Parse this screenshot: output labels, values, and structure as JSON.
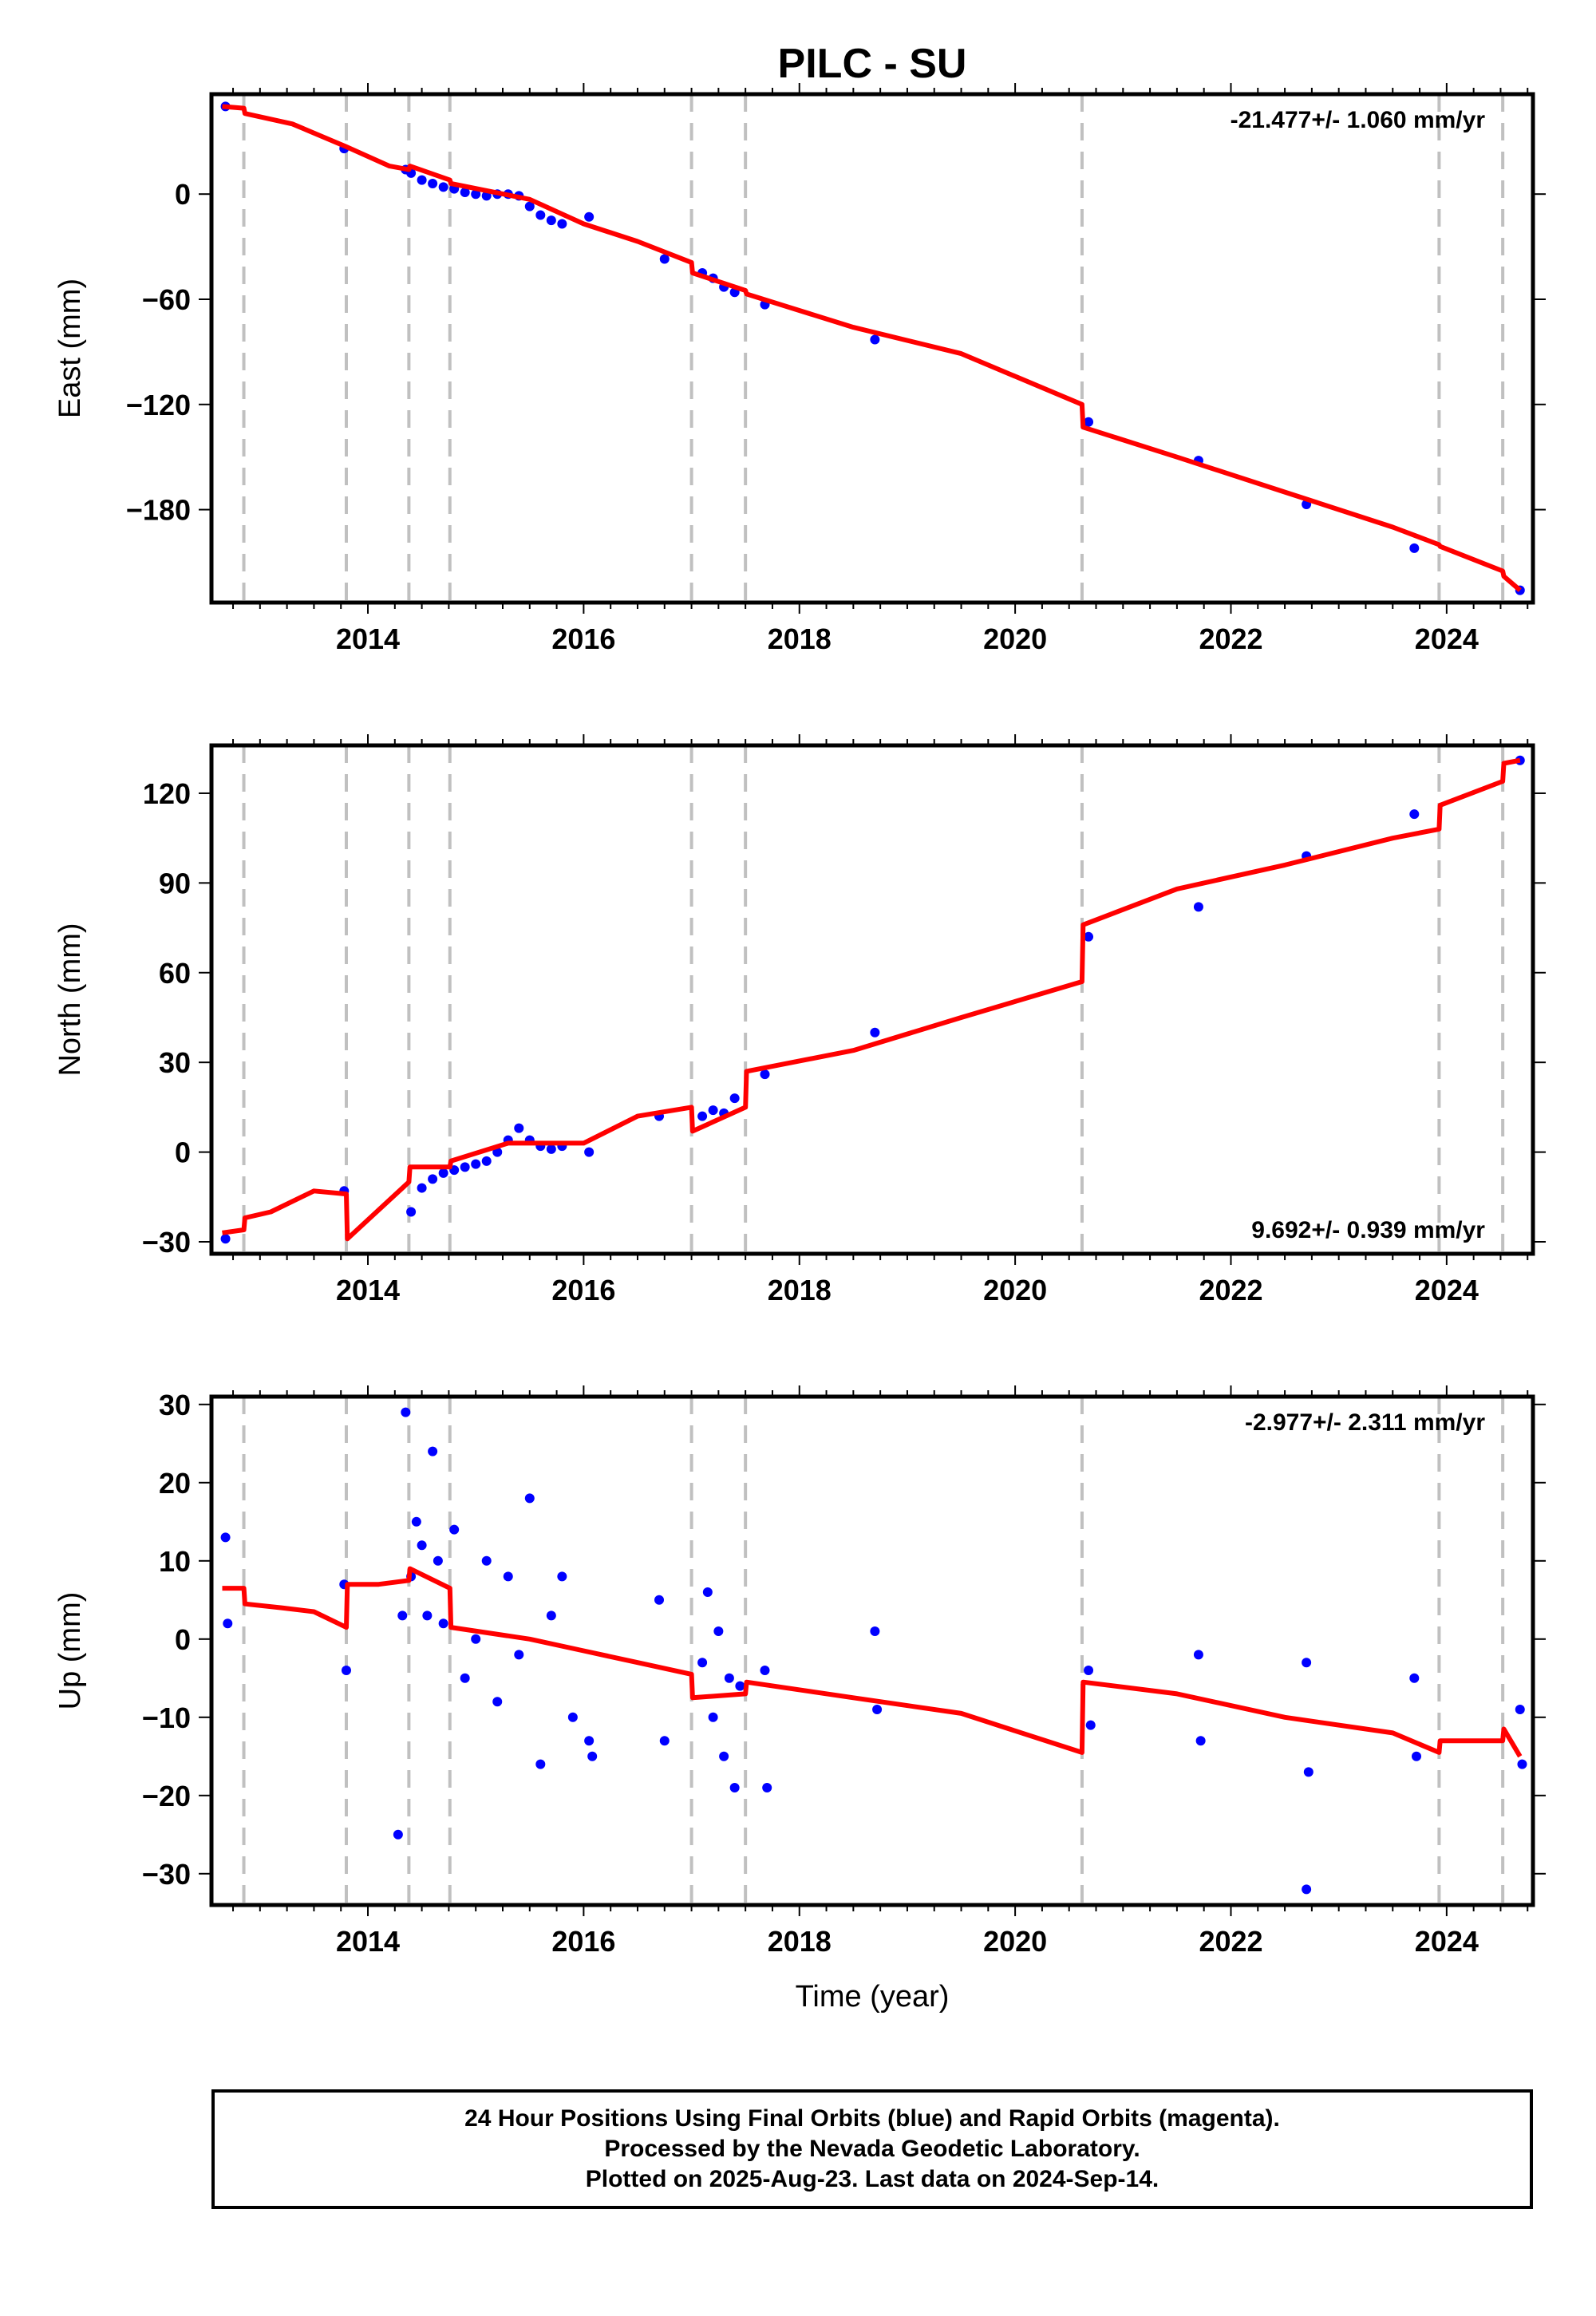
{
  "title": "PILC - SU",
  "xlabel": "Time (year)",
  "footer": {
    "line1": "24 Hour Positions Using Final Orbits (blue) and Rapid Orbits (magenta).",
    "line2": "Processed by the Nevada Geodetic Laboratory.",
    "line3": "Plotted on 2025-Aug-23. Last data on 2024-Sep-14."
  },
  "colors": {
    "data": "#0000ff",
    "model": "#ff0000",
    "events": "#c0c0c0"
  },
  "chart_data": [
    {
      "type": "scatter",
      "panel": "east",
      "ylabel": "East (mm)",
      "rate_text": "-21.477+/- 1.060 mm/yr",
      "rate_position": "top-right",
      "xlim": [
        2012.55,
        2024.8
      ],
      "ylim": [
        -233,
        57
      ],
      "x_ticks": [
        2014,
        2016,
        2018,
        2020,
        2022,
        2024
      ],
      "y_ticks": [
        0,
        -60,
        -120,
        -180
      ],
      "event_lines": [
        2012.85,
        2013.8,
        2014.38,
        2014.76,
        2017.0,
        2017.5,
        2020.62,
        2023.93,
        2024.52
      ],
      "model": {
        "x": [
          2012.65,
          2012.85,
          2012.86,
          2013.3,
          2013.8,
          2014.2,
          2014.38,
          2014.39,
          2014.76,
          2014.77,
          2015.5,
          2016.0,
          2016.5,
          2017.0,
          2017.01,
          2017.5,
          2017.51,
          2018.5,
          2019.5,
          2020.62,
          2020.63,
          2021.5,
          2022.5,
          2023.5,
          2023.93,
          2023.94,
          2024.52,
          2024.53,
          2024.68
        ],
        "y": [
          50,
          49,
          46,
          40,
          27,
          16,
          14,
          16,
          8,
          6,
          -3,
          -17,
          -27,
          -39,
          -45,
          -55,
          -57,
          -76,
          -91,
          -120,
          -133,
          -150,
          -170,
          -190,
          -200,
          -201,
          -215,
          -218,
          -226
        ]
      },
      "points": {
        "x": [
          2012.68,
          2013.78,
          2014.35,
          2014.4,
          2014.5,
          2014.6,
          2014.7,
          2014.8,
          2014.9,
          2015.0,
          2015.1,
          2015.2,
          2015.3,
          2015.4,
          2015.5,
          2015.6,
          2015.7,
          2015.8,
          2016.05,
          2016.75,
          2017.1,
          2017.2,
          2017.3,
          2017.4,
          2017.68,
          2018.7,
          2020.68,
          2021.7,
          2022.7,
          2023.7,
          2024.68
        ],
        "y": [
          50,
          26,
          14,
          12,
          8,
          6,
          4,
          3,
          1,
          0,
          -1,
          0,
          0,
          -1,
          -7,
          -12,
          -15,
          -17,
          -13,
          -37,
          -45,
          -48,
          -53,
          -56,
          -63,
          -83,
          -130,
          -152,
          -177,
          -202,
          -226
        ]
      }
    },
    {
      "type": "scatter",
      "panel": "north",
      "ylabel": "North (mm)",
      "rate_text": "9.692+/- 0.939 mm/yr",
      "rate_position": "bottom-right",
      "xlim": [
        2012.55,
        2024.8
      ],
      "ylim": [
        -34,
        136
      ],
      "x_ticks": [
        2014,
        2016,
        2018,
        2020,
        2022,
        2024
      ],
      "y_ticks": [
        120,
        90,
        60,
        30,
        0,
        -30
      ],
      "event_lines": [
        2012.85,
        2013.8,
        2014.38,
        2014.76,
        2017.0,
        2017.5,
        2020.62,
        2023.93,
        2024.52
      ],
      "model": {
        "x": [
          2012.65,
          2012.85,
          2012.86,
          2013.1,
          2013.5,
          2013.8,
          2013.81,
          2014.38,
          2014.39,
          2014.76,
          2014.77,
          2015.3,
          2016.0,
          2016.5,
          2017.0,
          2017.01,
          2017.5,
          2017.51,
          2018.5,
          2019.5,
          2020.62,
          2020.63,
          2021.5,
          2022.5,
          2023.5,
          2023.93,
          2023.94,
          2024.52,
          2024.53,
          2024.68
        ],
        "y": [
          -27,
          -26,
          -22,
          -20,
          -13,
          -14,
          -29,
          -10,
          -5,
          -5,
          -3,
          3,
          3,
          12,
          15,
          7,
          15,
          27,
          34,
          45,
          57,
          76,
          88,
          96,
          105,
          108,
          116,
          124,
          130,
          131
        ]
      },
      "points": {
        "x": [
          2012.68,
          2013.78,
          2014.4,
          2014.5,
          2014.6,
          2014.7,
          2014.8,
          2014.9,
          2015.0,
          2015.1,
          2015.2,
          2015.3,
          2015.4,
          2015.5,
          2015.6,
          2015.7,
          2015.8,
          2016.05,
          2016.7,
          2017.1,
          2017.2,
          2017.3,
          2017.4,
          2017.68,
          2018.7,
          2020.68,
          2021.7,
          2022.7,
          2023.7,
          2024.68
        ],
        "y": [
          -29,
          -13,
          -20,
          -12,
          -9,
          -7,
          -6,
          -5,
          -4,
          -3,
          0,
          4,
          8,
          4,
          2,
          1,
          2,
          0,
          12,
          12,
          14,
          13,
          18,
          26,
          40,
          72,
          82,
          99,
          113,
          131
        ]
      }
    },
    {
      "type": "scatter",
      "panel": "up",
      "ylabel": "Up (mm)",
      "rate_text": "-2.977+/- 2.311 mm/yr",
      "rate_position": "top-right",
      "xlim": [
        2012.55,
        2024.8
      ],
      "ylim": [
        -34,
        31
      ],
      "x_ticks": [
        2014,
        2016,
        2018,
        2020,
        2022,
        2024
      ],
      "y_ticks": [
        30,
        20,
        10,
        0,
        -10,
        -20,
        -30
      ],
      "event_lines": [
        2012.85,
        2013.8,
        2014.38,
        2014.76,
        2017.0,
        2017.5,
        2020.62,
        2023.93,
        2024.52
      ],
      "model": {
        "x": [
          2012.65,
          2012.85,
          2012.86,
          2013.2,
          2013.5,
          2013.8,
          2013.81,
          2014.1,
          2014.38,
          2014.39,
          2014.76,
          2014.77,
          2015.5,
          2016.0,
          2016.5,
          2017.0,
          2017.01,
          2017.5,
          2017.51,
          2018.5,
          2019.5,
          2020.62,
          2020.63,
          2021.5,
          2022.5,
          2023.5,
          2023.93,
          2023.94,
          2024.52,
          2024.53,
          2024.68
        ],
        "y": [
          6.5,
          6.5,
          4.5,
          4,
          3.5,
          1.5,
          7,
          7,
          7.5,
          9,
          6.5,
          1.5,
          0,
          -1.5,
          -3,
          -4.5,
          -7.5,
          -7,
          -5.5,
          -7.5,
          -9.5,
          -14.5,
          -5.5,
          -7,
          -10,
          -12,
          -14.5,
          -13,
          -13,
          -11.5,
          -15
        ]
      },
      "points": {
        "x": [
          2012.68,
          2012.7,
          2013.78,
          2013.8,
          2014.28,
          2014.32,
          2014.35,
          2014.4,
          2014.45,
          2014.5,
          2014.55,
          2014.6,
          2014.65,
          2014.7,
          2014.8,
          2014.9,
          2015.0,
          2015.1,
          2015.2,
          2015.3,
          2015.4,
          2015.5,
          2015.6,
          2015.7,
          2015.8,
          2015.9,
          2016.05,
          2016.08,
          2016.7,
          2016.75,
          2017.1,
          2017.15,
          2017.2,
          2017.25,
          2017.3,
          2017.35,
          2017.4,
          2017.45,
          2017.68,
          2017.7,
          2018.7,
          2018.72,
          2020.68,
          2020.7,
          2021.7,
          2021.72,
          2022.7,
          2022.72,
          2022.7,
          2023.7,
          2023.72,
          2024.68,
          2024.7
        ],
        "y": [
          13,
          2,
          7,
          -4,
          -25,
          3,
          29,
          8,
          15,
          12,
          3,
          24,
          10,
          2,
          14,
          -5,
          0,
          10,
          -8,
          8,
          -2,
          18,
          -16,
          3,
          8,
          -10,
          -13,
          -15,
          5,
          -13,
          -3,
          6,
          -10,
          1,
          -15,
          -5,
          -19,
          -6,
          -4,
          -19,
          1,
          -9,
          -4,
          -11,
          -2,
          -13,
          -3,
          -17,
          -32,
          -5,
          -15,
          -9,
          -16
        ]
      }
    }
  ]
}
